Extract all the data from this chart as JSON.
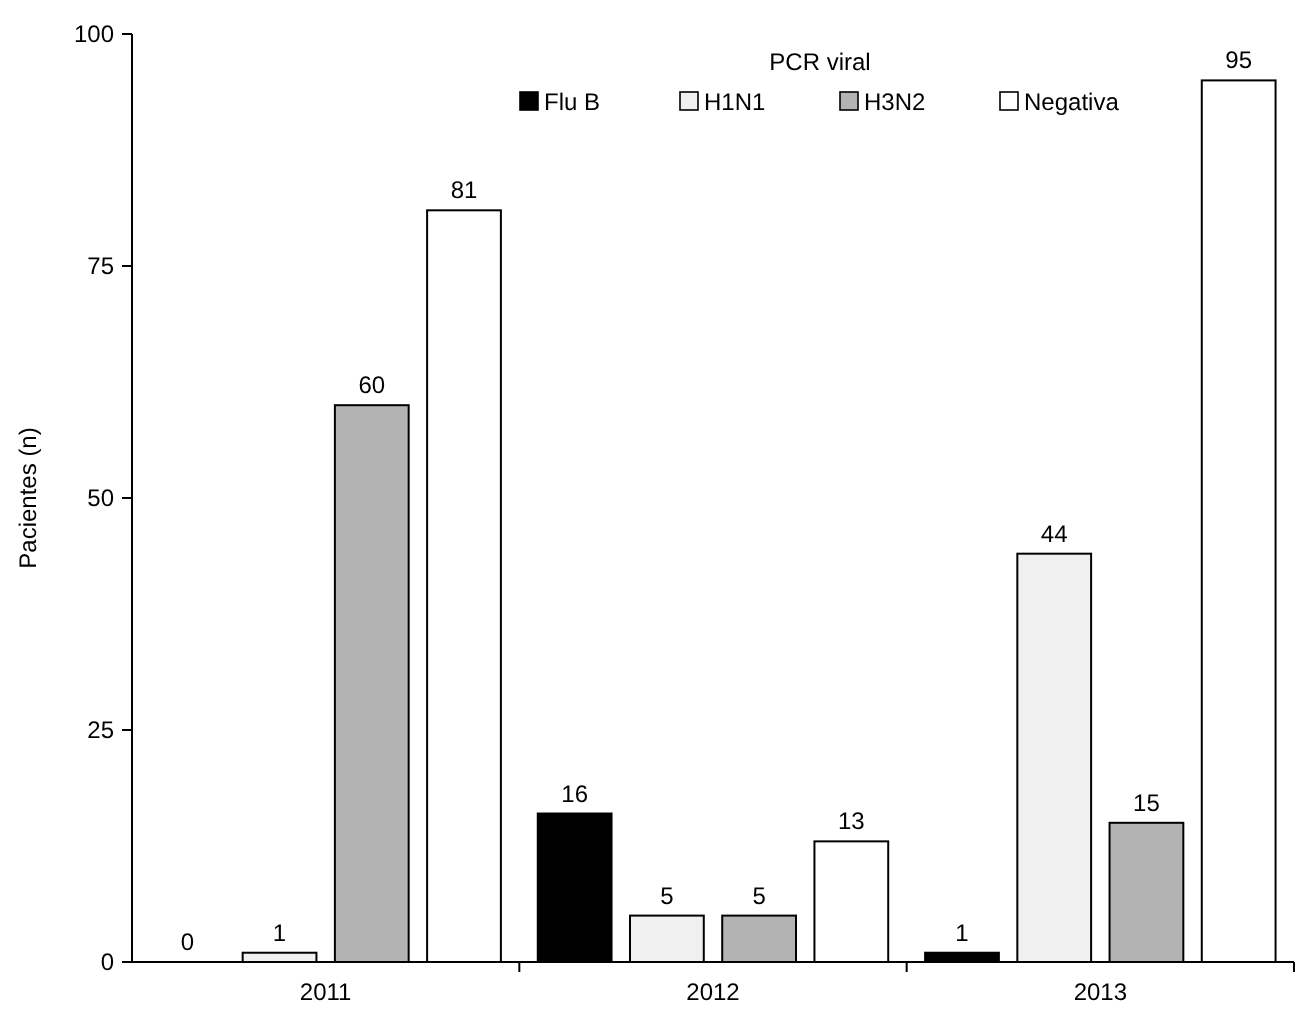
{
  "chart_data": {
    "type": "bar",
    "ylabel": "Pacientes (n)",
    "legend_title": "PCR viral",
    "categories": [
      "2011",
      "2012",
      "2013"
    ],
    "series": [
      {
        "name": "Flu B",
        "color": "#000000",
        "values": [
          0,
          16,
          1
        ]
      },
      {
        "name": "H1N1",
        "color": "#f0f0f0",
        "values": [
          1,
          5,
          44
        ]
      },
      {
        "name": "H3N2",
        "color": "#b3b3b3",
        "values": [
          60,
          5,
          15
        ]
      },
      {
        "name": "Negativa",
        "color": "#ffffff",
        "values": [
          81,
          13,
          95
        ]
      }
    ],
    "ylim": [
      0,
      100
    ],
    "yticks": [
      0,
      25,
      50,
      75,
      100
    ],
    "data_labels": true,
    "legend": "top",
    "grid": false
  }
}
